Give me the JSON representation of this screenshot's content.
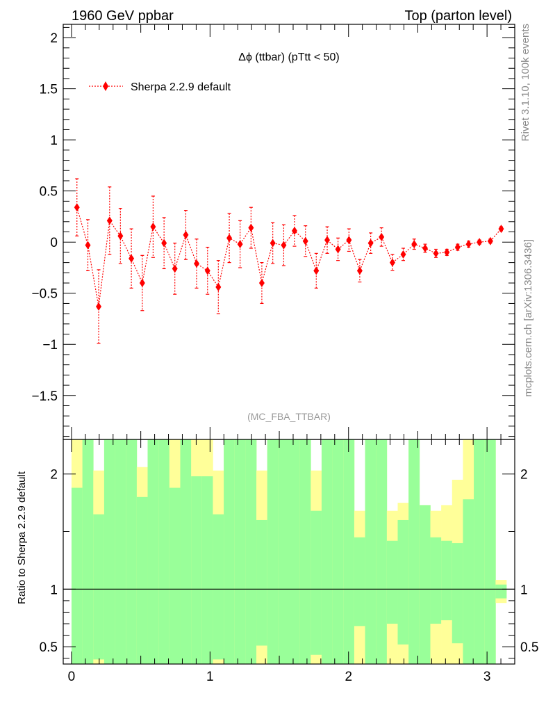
{
  "header": {
    "left": "1960 GeV ppbar",
    "right": "Top (parton level)"
  },
  "side_labels": {
    "rivet": "Rivet 3.1.10,  100k events",
    "mcplots": "mcplots.cern.ch [arXiv:1306.3436]"
  },
  "colors": {
    "series": "#ff0000",
    "band_green": "#99ff99",
    "band_yellow": "#ffff99"
  },
  "chart_data": [
    {
      "type": "scatter",
      "title": "Δϕ (ttbar) (pTtt < 50)",
      "watermark": "(MC_FBA_TTBAR)",
      "xlim": [
        -0.06,
        3.2
      ],
      "ylim": [
        -1.93,
        2.13
      ],
      "yticks": [
        {
          "v": 2,
          "label": "2"
        },
        {
          "v": 1.5,
          "label": "1.5"
        },
        {
          "v": 1,
          "label": "1"
        },
        {
          "v": 0.5,
          "label": "0.5"
        },
        {
          "v": 0,
          "label": "0"
        },
        {
          "v": -0.5,
          "label": "−0.5"
        },
        {
          "v": -1,
          "label": "−1"
        },
        {
          "v": -1.5,
          "label": "−1.5"
        }
      ],
      "legend": {
        "position": "top-left",
        "entry": "Sherpa 2.2.9 default"
      },
      "series": [
        {
          "name": "Sherpa 2.2.9 default",
          "x": [
            0.039,
            0.118,
            0.196,
            0.275,
            0.353,
            0.432,
            0.511,
            0.589,
            0.668,
            0.746,
            0.825,
            0.903,
            0.982,
            1.06,
            1.139,
            1.217,
            1.296,
            1.374,
            1.453,
            1.532,
            1.61,
            1.689,
            1.767,
            1.846,
            1.924,
            2.003,
            2.081,
            2.16,
            2.238,
            2.317,
            2.395,
            2.474,
            2.553,
            2.631,
            2.71,
            2.788,
            2.867,
            2.945,
            3.024,
            3.102
          ],
          "y": [
            0.34,
            -0.03,
            -0.63,
            0.21,
            0.06,
            -0.16,
            -0.4,
            0.15,
            -0.01,
            -0.26,
            0.07,
            -0.21,
            -0.28,
            -0.44,
            0.04,
            -0.02,
            0.14,
            -0.4,
            -0.01,
            -0.03,
            0.11,
            0.01,
            -0.28,
            0.02,
            -0.07,
            0.02,
            -0.28,
            -0.01,
            0.05,
            -0.2,
            -0.12,
            -0.02,
            -0.06,
            -0.11,
            -0.1,
            -0.05,
            -0.02,
            0.0,
            0.01,
            0.13
          ],
          "err": [
            0.28,
            0.25,
            0.36,
            0.33,
            0.27,
            0.29,
            0.27,
            0.3,
            0.25,
            0.25,
            0.24,
            0.24,
            0.23,
            0.26,
            0.24,
            0.23,
            0.2,
            0.2,
            0.2,
            0.2,
            0.15,
            0.15,
            0.17,
            0.13,
            0.11,
            0.11,
            0.11,
            0.1,
            0.09,
            0.08,
            0.06,
            0.05,
            0.04,
            0.04,
            0.03,
            0.03,
            0.03,
            0.02,
            0.02,
            0.02
          ]
        }
      ]
    },
    {
      "type": "heatmap",
      "ylabel": "Ratio to Sherpa 2.2.9 default",
      "xlim": [
        -0.06,
        3.2
      ],
      "ylim": [
        0.35,
        2.3
      ],
      "xticks": [
        {
          "v": 0,
          "label": "0"
        },
        {
          "v": 1,
          "label": "1"
        },
        {
          "v": 2,
          "label": "2"
        },
        {
          "v": 3,
          "label": "3"
        }
      ],
      "yticks": [
        {
          "v": 2,
          "label": "2"
        },
        {
          "v": 1,
          "label": "1"
        },
        {
          "v": 0.5,
          "label": "0.5"
        }
      ],
      "reference_line": 1,
      "bins": {
        "lo": [
          0.0,
          0.0785,
          0.157,
          0.2355,
          0.314,
          0.3925,
          0.471,
          0.5495,
          0.628,
          0.7065,
          0.785,
          0.8635,
          0.942,
          1.0205,
          1.099,
          1.1775,
          1.256,
          1.3345,
          1.413,
          1.4915,
          1.57,
          1.6485,
          1.727,
          1.8055,
          1.884,
          1.9625,
          2.041,
          2.1195,
          2.198,
          2.2765,
          2.355,
          2.4335,
          2.512,
          2.5905,
          2.669,
          2.7475,
          2.826,
          2.9045,
          2.983,
          3.0615
        ],
        "hi": [
          0.0785,
          0.157,
          0.2355,
          0.314,
          0.3925,
          0.471,
          0.5495,
          0.628,
          0.7065,
          0.785,
          0.8635,
          0.942,
          1.0205,
          1.099,
          1.1775,
          1.256,
          1.3345,
          1.413,
          1.4915,
          1.57,
          1.6485,
          1.727,
          1.8055,
          1.884,
          1.9625,
          2.041,
          2.1195,
          2.198,
          2.2765,
          2.355,
          2.4335,
          2.512,
          2.5905,
          2.669,
          2.7475,
          2.826,
          2.9045,
          2.983,
          3.0615,
          3.14
        ],
        "green_low": [
          0.35,
          0.35,
          0.39,
          0.35,
          0.35,
          0.35,
          0.35,
          0.35,
          0.35,
          0.35,
          0.35,
          0.35,
          0.35,
          0.39,
          0.35,
          0.35,
          0.35,
          0.51,
          0.35,
          0.35,
          0.35,
          0.35,
          0.43,
          0.35,
          0.35,
          0.35,
          0.68,
          0.35,
          0.35,
          0.7,
          0.52,
          0.35,
          0.35,
          0.7,
          0.73,
          0.53,
          0.35,
          0.35,
          0.35,
          0.92
        ],
        "green_high": [
          1.88,
          2.3,
          1.65,
          2.3,
          2.3,
          2.3,
          1.8,
          2.3,
          2.3,
          1.88,
          2.3,
          1.98,
          1.98,
          1.65,
          2.3,
          2.3,
          2.3,
          1.6,
          2.3,
          2.3,
          2.3,
          2.3,
          1.68,
          2.3,
          2.3,
          2.3,
          1.45,
          2.3,
          2.3,
          1.42,
          1.6,
          2.3,
          1.73,
          1.45,
          1.42,
          1.4,
          1.78,
          2.3,
          2.3,
          1.04
        ],
        "yellow_low": [
          0.35,
          0.35,
          0.35,
          0.35,
          0.35,
          0.35,
          0.35,
          0.35,
          0.35,
          0.35,
          0.35,
          0.35,
          0.35,
          0.35,
          0.35,
          0.35,
          0.35,
          0.35,
          0.35,
          0.35,
          0.35,
          0.35,
          0.35,
          0.35,
          0.35,
          0.35,
          0.35,
          0.35,
          0.35,
          0.35,
          0.35,
          0.35,
          0.35,
          0.35,
          0.35,
          0.35,
          0.35,
          0.35,
          0.35,
          0.88
        ],
        "yellow_high": [
          2.3,
          2.3,
          2.03,
          2.3,
          2.3,
          2.3,
          2.06,
          2.3,
          2.3,
          2.3,
          2.3,
          2.3,
          2.3,
          2.03,
          2.3,
          2.3,
          2.3,
          2.03,
          2.3,
          2.3,
          2.3,
          2.3,
          2.03,
          2.3,
          2.3,
          2.3,
          1.68,
          2.3,
          2.3,
          1.68,
          1.75,
          2.3,
          1.73,
          1.68,
          1.73,
          1.95,
          2.3,
          2.3,
          2.3,
          1.08
        ]
      }
    }
  ]
}
